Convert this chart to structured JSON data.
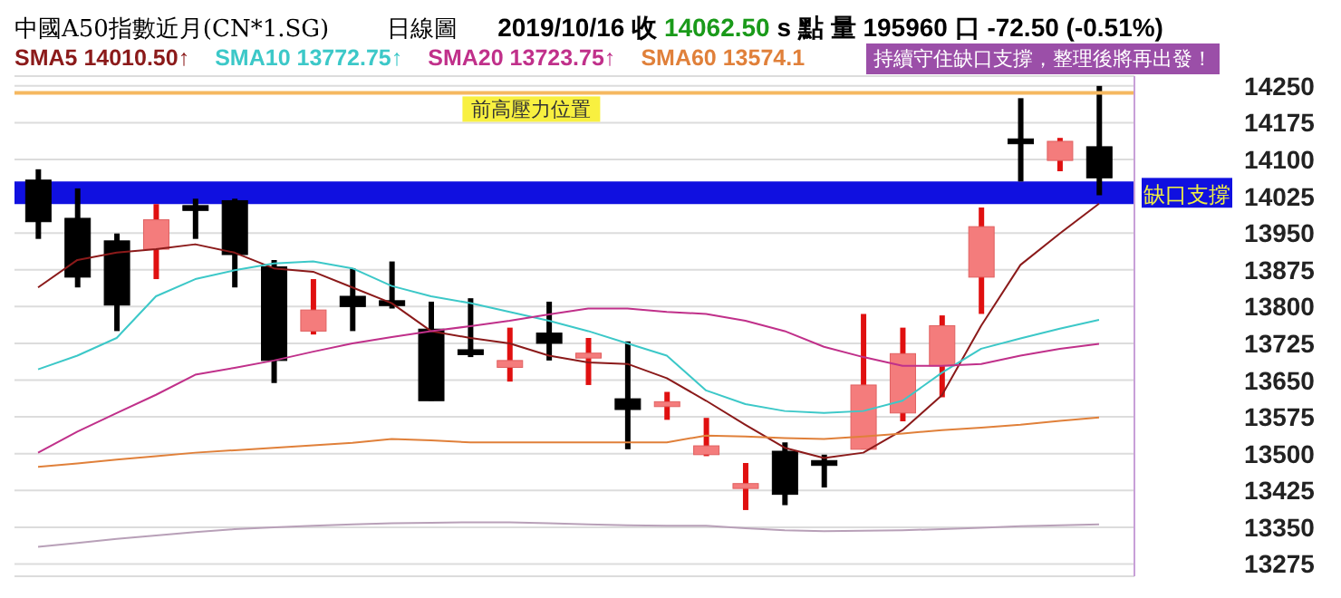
{
  "chart_data": {
    "type": "candlestick",
    "title": "中國A50指數近月(CN*1.SG)",
    "subtitle": "日線圖",
    "annotations": [
      "2019/10/16 收",
      "14062.50",
      "s 點 量 195960 口 -72.50 (-0.51%)",
      "持續守住缺口支撐，整理後將再出發！"
    ],
    "categories": [
      null,
      null,
      null,
      null,
      null,
      null,
      null,
      null,
      null,
      null,
      null,
      null,
      null,
      null,
      null,
      null,
      null,
      null,
      null,
      null,
      null,
      null,
      null,
      null,
      null,
      null,
      null,
      null
    ],
    "ohlc": [
      [
        14058,
        14080,
        13938,
        13973
      ],
      [
        13980,
        14041,
        13839,
        13860
      ],
      [
        13934,
        13949,
        13750,
        13803
      ],
      [
        13917,
        14009,
        13856,
        13977
      ],
      [
        14006,
        14020,
        13938,
        13996
      ],
      [
        14016,
        14020,
        13839,
        13906
      ],
      [
        13881,
        13895,
        13644,
        13690
      ],
      [
        13750,
        13856,
        13743,
        13793
      ],
      [
        13821,
        13878,
        13750,
        13800
      ],
      [
        13812,
        13892,
        13796,
        13802
      ],
      [
        13754,
        13810,
        13608,
        13608
      ],
      [
        13712,
        13817,
        13697,
        13702
      ],
      [
        13676,
        13757,
        13647,
        13690
      ],
      [
        13746,
        13810,
        13690,
        13725
      ],
      [
        13695,
        13736,
        13640,
        13705
      ],
      [
        13612,
        13729,
        13509,
        13590
      ],
      [
        13596,
        13626,
        13569,
        13606
      ],
      [
        13498,
        13573,
        13495,
        13516
      ],
      [
        13429,
        13481,
        13385,
        13439
      ],
      [
        13505,
        13523,
        13395,
        13417
      ],
      [
        13486,
        13498,
        13431,
        13476
      ],
      [
        13509,
        13785,
        13509,
        13640
      ],
      [
        13583,
        13757,
        13566,
        13704
      ],
      [
        13679,
        13782,
        13615,
        13761
      ],
      [
        13860,
        14002,
        13785,
        13963
      ],
      [
        14142,
        14225,
        14055,
        14132
      ],
      [
        14098,
        14144,
        14076,
        14137
      ],
      [
        14126,
        14250,
        14027,
        14062.5
      ]
    ],
    "colors": [
      "#000000",
      "#000000",
      "#000000",
      "#f47c7c",
      "#000000",
      "#000000",
      "#000000",
      "#f47c7c",
      "#000000",
      "#000000",
      "#000000",
      "#000000",
      "#f47c7c",
      "#000000",
      "#f47c7c",
      "#000000",
      "#f47c7c",
      "#f47c7c",
      "#f47c7c",
      "#000000",
      "#000000",
      "#f47c7c",
      "#f47c7c",
      "#f47c7c",
      "#f47c7c",
      "#000000",
      "#f47c7c",
      "#000000"
    ],
    "series": [
      {
        "type": "line",
        "name": "SMA5 14010.50↑",
        "color": "#8b1a1a",
        "values": [
          13839,
          13895,
          13910,
          13917,
          13927,
          13910,
          13878,
          13871,
          13839,
          13807,
          13750,
          13736,
          13725,
          13700,
          13686,
          13683,
          13654,
          13608,
          13559,
          13512,
          13491,
          13502,
          13548,
          13619,
          13761,
          13885,
          13949,
          14010
        ]
      },
      {
        "type": "line",
        "name": "SMA10 13772.75↑",
        "color": "#3cc8c8",
        "values": [
          13672,
          13700,
          13736,
          13821,
          13856,
          13874,
          13888,
          13892,
          13878,
          13842,
          13821,
          13807,
          13789,
          13771,
          13750,
          13725,
          13700,
          13629,
          13601,
          13587,
          13583,
          13587,
          13608,
          13665,
          13714,
          13735,
          13755,
          13773
        ]
      },
      {
        "type": "line",
        "name": "SMA20 13723.75↑",
        "color": "#c0308a",
        "values": [
          13502,
          13545,
          13583,
          13620,
          13661,
          13675,
          13690,
          13708,
          13725,
          13738,
          13750,
          13760,
          13771,
          13784,
          13796,
          13796,
          13789,
          13785,
          13771,
          13750,
          13718,
          13697,
          13679,
          13679,
          13683,
          13700,
          13714,
          13724
        ]
      },
      {
        "type": "line",
        "name": "SMA60 13574.1",
        "color": "#e0803a",
        "values": [
          13473,
          13480,
          13488,
          13495,
          13502,
          13507,
          13512,
          13517,
          13522,
          13530,
          13527,
          13523,
          13523,
          13523,
          13523,
          13523,
          13523,
          13537,
          13535,
          13532,
          13530,
          13535,
          13541,
          13548,
          13553,
          13559,
          13567,
          13574
        ]
      },
      {
        "type": "line",
        "color": "#b8a0b8",
        "values": [
          13310,
          13318,
          13326,
          13333,
          13340,
          13346,
          13350,
          13353,
          13356,
          13358,
          13359,
          13360,
          13360,
          13358,
          13356,
          13354,
          13353,
          13353,
          13348,
          13344,
          13342,
          13343,
          13344,
          13346,
          13349,
          13352,
          13354,
          13356
        ]
      }
    ],
    "ylim": [
      13250,
      14270
    ],
    "yticks": [
      13275,
      13350,
      13425,
      13500,
      13575,
      13650,
      13725,
      13800,
      13875,
      13950,
      14025,
      14100,
      14175,
      14250
    ],
    "grid": "y",
    "legend": "top left",
    "tick_labels": "y",
    "ref_lines": [
      {
        "axis": "y",
        "value": 14236,
        "label": "前高壓力位置",
        "color": "#f5b860"
      }
    ],
    "bands": [
      {
        "axis": "y",
        "from": 14009,
        "to": 14055,
        "label": "缺口支撐",
        "color": "#1010e0"
      }
    ]
  }
}
